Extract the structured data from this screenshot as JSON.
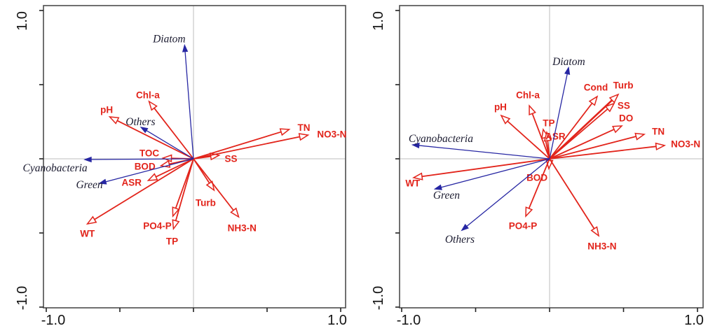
{
  "figure_description": "Two ordination biplots (RDA/CCA style) with red environmental-variable arrows and blue algal-group arrows",
  "axis": {
    "x_min_label": "-1.0",
    "x_max_label": "1.0",
    "y_min_label": "-1.0",
    "y_max_label": "1.0"
  },
  "chart_data": [
    {
      "type": "biplot",
      "title": "",
      "panel": "left",
      "xlim": [
        -1,
        1
      ],
      "ylim": [
        -1,
        1
      ],
      "xticks": [
        -1,
        -0.5,
        0,
        0.5,
        1
      ],
      "yticks": [
        -1,
        -0.5,
        0,
        0.5,
        1
      ],
      "xtick_labels": [
        "-1.0",
        "",
        "",
        "",
        "1.0"
      ],
      "ytick_labels": [
        "-1.0",
        "",
        "",
        "",
        "1.0"
      ],
      "grid": "crosshair-at-origin",
      "legend_position": "none",
      "colors": {
        "env": "#e2241b",
        "species": "#2727a3"
      },
      "env_arrows": [
        {
          "label": "pH",
          "x": -0.569,
          "y": 0.283,
          "lx": -0.59,
          "ly": 0.33
        },
        {
          "label": "Chl-a",
          "x": -0.302,
          "y": 0.387,
          "lx": -0.31,
          "ly": 0.43
        },
        {
          "label": "TOC",
          "x": -0.207,
          "y": 0.005,
          "lx": -0.3,
          "ly": 0.038
        },
        {
          "label": "BOD",
          "x": -0.221,
          "y": -0.047,
          "lx": -0.33,
          "ly": -0.052
        },
        {
          "label": "ASR",
          "x": -0.307,
          "y": -0.146,
          "lx": -0.42,
          "ly": -0.16
        },
        {
          "label": "WT",
          "x": -0.721,
          "y": -0.439,
          "lx": -0.72,
          "ly": -0.505
        },
        {
          "label": "PO4-P",
          "x": -0.14,
          "y": -0.387,
          "lx": -0.245,
          "ly": -0.453
        },
        {
          "label": "TP",
          "x": -0.136,
          "y": -0.472,
          "lx": -0.145,
          "ly": -0.557
        },
        {
          "label": "Turb",
          "x": 0.14,
          "y": -0.212,
          "lx": 0.083,
          "ly": -0.297
        },
        {
          "label": "NH3-N",
          "x": 0.307,
          "y": -0.392,
          "lx": 0.33,
          "ly": -0.467
        },
        {
          "label": "SS",
          "x": 0.174,
          "y": 0.024,
          "lx": 0.255,
          "ly": 0.0
        },
        {
          "label": "TN",
          "x": 0.65,
          "y": 0.198,
          "lx": 0.75,
          "ly": 0.21
        },
        {
          "label": "NO3-N",
          "x": 0.778,
          "y": 0.16,
          "lx": 0.94,
          "ly": 0.165
        }
      ],
      "species_arrows": [
        {
          "label": "Diatom",
          "x": -0.06,
          "y": 0.764,
          "lx": -0.165,
          "ly": 0.81
        },
        {
          "label": "Others",
          "x": -0.355,
          "y": 0.212,
          "lx": -0.36,
          "ly": 0.25
        },
        {
          "label": "Cyanobacteria",
          "x": -0.736,
          "y": -0.005,
          "lx": -0.94,
          "ly": -0.061
        },
        {
          "label": "Green",
          "x": -0.636,
          "y": -0.165,
          "lx": -0.707,
          "ly": -0.175
        }
      ]
    },
    {
      "type": "biplot",
      "title": "",
      "panel": "right",
      "xlim": [
        -1,
        1
      ],
      "ylim": [
        -1,
        1
      ],
      "xticks": [
        -1,
        -0.5,
        0,
        0.5,
        1
      ],
      "yticks": [
        -1,
        -0.5,
        0,
        0.5,
        1
      ],
      "xtick_labels": [
        "-1.0",
        "",
        "",
        "",
        "1.0"
      ],
      "ytick_labels": [
        "-1.0",
        "",
        "",
        "",
        "1.0"
      ],
      "grid": "crosshair-at-origin",
      "legend_position": "none",
      "colors": {
        "env": "#e2241b",
        "species": "#2727a3"
      },
      "env_arrows": [
        {
          "label": "pH",
          "x": -0.327,
          "y": 0.292,
          "lx": -0.332,
          "ly": 0.349
        },
        {
          "label": "Chl-a",
          "x": -0.137,
          "y": 0.358,
          "lx": -0.147,
          "ly": 0.429
        },
        {
          "label": "TP",
          "x": -0.043,
          "y": 0.198,
          "lx": -0.005,
          "ly": 0.241
        },
        {
          "label": "ASR",
          "x": -0.019,
          "y": 0.179,
          "lx": 0.04,
          "ly": 0.151
        },
        {
          "label": "Cond",
          "x": 0.322,
          "y": 0.42,
          "lx": 0.313,
          "ly": 0.481
        },
        {
          "label": "Turb",
          "x": 0.464,
          "y": 0.434,
          "lx": 0.498,
          "ly": 0.495,
          "w": 2.6
        },
        {
          "label": "SS",
          "x": 0.436,
          "y": 0.373,
          "lx": 0.502,
          "ly": 0.358
        },
        {
          "label": "DO",
          "x": 0.488,
          "y": 0.222,
          "lx": 0.517,
          "ly": 0.274
        },
        {
          "label": "TN",
          "x": 0.64,
          "y": 0.165,
          "lx": 0.735,
          "ly": 0.185
        },
        {
          "label": "NO3-N",
          "x": 0.777,
          "y": 0.09,
          "lx": 0.92,
          "ly": 0.1
        },
        {
          "label": "WT",
          "x": -0.919,
          "y": -0.127,
          "lx": -0.925,
          "ly": -0.165
        },
        {
          "label": "BOD",
          "x": -0.005,
          "y": -0.066,
          "lx": -0.085,
          "ly": -0.127
        },
        {
          "label": "PO4-P",
          "x": -0.161,
          "y": -0.387,
          "lx": -0.18,
          "ly": -0.453
        },
        {
          "label": "NH3-N",
          "x": 0.332,
          "y": -0.519,
          "lx": 0.355,
          "ly": -0.59
        }
      ],
      "species_arrows": [
        {
          "label": "Diatom",
          "x": 0.128,
          "y": 0.613,
          "lx": 0.13,
          "ly": 0.655
        },
        {
          "label": "Cyanobacteria",
          "x": -0.924,
          "y": 0.094,
          "lx": -0.735,
          "ly": 0.137
        },
        {
          "label": "Green",
          "x": -0.773,
          "y": -0.203,
          "lx": -0.697,
          "ly": -0.245
        },
        {
          "label": "Others",
          "x": -0.592,
          "y": -0.481,
          "lx": -0.607,
          "ly": -0.542
        }
      ]
    }
  ]
}
